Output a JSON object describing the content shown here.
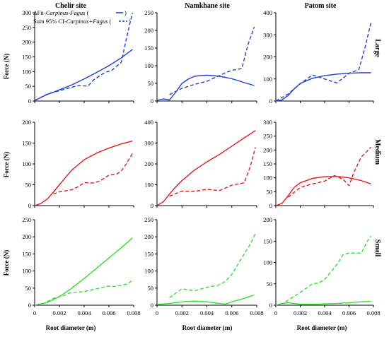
{
  "sites": [
    "Chelir site",
    "Namkhane site",
    "Patom site"
  ],
  "sizes": [
    "Large",
    "Medium",
    "Small"
  ],
  "y_axis_label": "Force (N)",
  "x_axis_label": "Root diameter (m)",
  "legend": {
    "fit": {
      "prefix": "ΔFit-",
      "italic": "Carpinus-Fagus",
      "suffix": " (",
      "close": ")"
    },
    "sum": {
      "prefix": "Sum 95% CI-",
      "italic": "Carpinus+Fagus",
      "suffix": " (",
      "close": ")"
    }
  },
  "colors": {
    "Large": "#1f3fd6",
    "Medium": "#e31a1c",
    "Small": "#2fe02f"
  },
  "chart_data": [
    {
      "type": "line",
      "site": "Chelir site",
      "size": "Large",
      "xlim": [
        0,
        0.008
      ],
      "ylim": [
        0,
        300
      ],
      "xticks": [],
      "yticks": [
        0,
        50,
        100,
        150,
        200,
        250,
        300
      ],
      "series": [
        {
          "name": "ΔFit-Carpinus-Fagus",
          "style": "solid",
          "x": [
            0,
            0.001,
            0.002,
            0.003,
            0.004,
            0.005,
            0.006,
            0.007,
            0.0079
          ],
          "y": [
            2,
            22,
            38,
            55,
            75,
            97,
            120,
            147,
            175
          ]
        },
        {
          "name": "Sum 95% CI-Carpinus+Fagus",
          "style": "dashed",
          "x": [
            0,
            0.001,
            0.002,
            0.003,
            0.0035,
            0.0043,
            0.0048,
            0.0057,
            0.0062,
            0.007,
            0.0074,
            0.0079
          ],
          "y": [
            2,
            23,
            35,
            47,
            52,
            51,
            73,
            98,
            103,
            132,
            210,
            300
          ]
        }
      ]
    },
    {
      "type": "line",
      "site": "Namkhane site",
      "size": "Large",
      "xlim": [
        0,
        0.008
      ],
      "ylim": [
        0,
        250
      ],
      "xticks": [],
      "yticks": [
        0,
        50,
        100,
        150,
        200,
        250
      ],
      "series": [
        {
          "name": "ΔFit-Carpinus-Fagus",
          "style": "solid",
          "x": [
            0,
            0.0005,
            0.001,
            0.0015,
            0.002,
            0.0025,
            0.003,
            0.0035,
            0.004,
            0.0045,
            0.005,
            0.0055,
            0.006,
            0.0065,
            0.007,
            0.0075,
            0.0078
          ],
          "y": [
            2,
            6,
            3,
            25,
            50,
            62,
            70,
            72,
            73,
            72,
            70,
            67,
            63,
            58,
            52,
            47,
            44
          ]
        },
        {
          "name": "Sum 95% CI-Carpinus+Fagus",
          "style": "dashed",
          "x": [
            0.001,
            0.002,
            0.003,
            0.004,
            0.005,
            0.0055,
            0.006,
            0.0068,
            0.0073,
            0.0078
          ],
          "y": [
            18,
            36,
            47,
            56,
            72,
            80,
            87,
            92,
            160,
            210
          ]
        }
      ]
    },
    {
      "type": "line",
      "site": "Patom site",
      "size": "Large",
      "xlim": [
        0,
        0.008
      ],
      "ylim": [
        0,
        400
      ],
      "xticks": [],
      "yticks": [
        0,
        100,
        200,
        300,
        400
      ],
      "series": [
        {
          "name": "ΔFit-Carpinus-Fagus",
          "style": "solid",
          "x": [
            0,
            0.0005,
            0.001,
            0.0015,
            0.002,
            0.003,
            0.004,
            0.005,
            0.006,
            0.007,
            0.0078
          ],
          "y": [
            0,
            5,
            25,
            55,
            80,
            103,
            115,
            122,
            126,
            128,
            128
          ]
        },
        {
          "name": "Sum 95% CI-Carpinus+Fagus",
          "style": "dashed",
          "x": [
            0,
            0.001,
            0.002,
            0.003,
            0.004,
            0.005,
            0.006,
            0.0068,
            0.0073,
            0.0078
          ],
          "y": [
            0,
            32,
            78,
            118,
            100,
            82,
            125,
            142,
            240,
            355
          ]
        }
      ]
    },
    {
      "type": "line",
      "site": "Chelir site",
      "size": "Medium",
      "xlim": [
        0,
        0.008
      ],
      "ylim": [
        0,
        200
      ],
      "xticks": [],
      "yticks": [
        0,
        50,
        100,
        150,
        200
      ],
      "series": [
        {
          "name": "ΔFit-Carpinus-Fagus",
          "style": "solid",
          "x": [
            0,
            0.0005,
            0.001,
            0.0015,
            0.002,
            0.0025,
            0.003,
            0.004,
            0.005,
            0.006,
            0.007,
            0.0079
          ],
          "y": [
            0,
            5,
            15,
            32,
            50,
            68,
            85,
            110,
            126,
            138,
            148,
            155
          ]
        },
        {
          "name": "Sum 95% CI-Carpinus+Fagus",
          "style": "dashed",
          "x": [
            0.0015,
            0.002,
            0.003,
            0.0035,
            0.004,
            0.0047,
            0.0052,
            0.006,
            0.0066,
            0.007,
            0.0074,
            0.0079
          ],
          "y": [
            28,
            33,
            38,
            45,
            55,
            54,
            58,
            73,
            75,
            83,
            100,
            125
          ]
        }
      ]
    },
    {
      "type": "line",
      "site": "Namkhane site",
      "size": "Medium",
      "xlim": [
        0,
        0.008
      ],
      "ylim": [
        0,
        400
      ],
      "xticks": [],
      "yticks": [
        0,
        100,
        200,
        300,
        400
      ],
      "series": [
        {
          "name": "ΔFit-Carpinus-Fagus",
          "style": "solid",
          "x": [
            0,
            0.0005,
            0.001,
            0.0015,
            0.002,
            0.003,
            0.004,
            0.005,
            0.006,
            0.007,
            0.0079
          ],
          "y": [
            0,
            18,
            55,
            90,
            120,
            170,
            210,
            245,
            285,
            325,
            360
          ]
        },
        {
          "name": "Sum 95% CI-Carpinus+Fagus",
          "style": "dashed",
          "x": [
            0.001,
            0.002,
            0.003,
            0.004,
            0.005,
            0.006,
            0.007,
            0.0075,
            0.0079
          ],
          "y": [
            45,
            70,
            68,
            78,
            72,
            98,
            110,
            190,
            280
          ]
        }
      ]
    },
    {
      "type": "line",
      "site": "Patom site",
      "size": "Medium",
      "xlim": [
        0,
        0.008
      ],
      "ylim": [
        0,
        300
      ],
      "xticks": [],
      "yticks": [
        0,
        50,
        100,
        150,
        200,
        250,
        300
      ],
      "series": [
        {
          "name": "ΔFit-Carpinus-Fagus",
          "style": "solid",
          "x": [
            0,
            0.0005,
            0.001,
            0.0015,
            0.002,
            0.003,
            0.004,
            0.005,
            0.006,
            0.007,
            0.0078
          ],
          "y": [
            0,
            8,
            35,
            65,
            82,
            98,
            104,
            105,
            100,
            90,
            78
          ]
        },
        {
          "name": "Sum 95% CI-Carpinus+Fagus",
          "style": "dashed",
          "x": [
            0.001,
            0.002,
            0.003,
            0.004,
            0.0048,
            0.0055,
            0.006,
            0.0064,
            0.007,
            0.0078
          ],
          "y": [
            30,
            65,
            78,
            88,
            108,
            95,
            72,
            120,
            175,
            210
          ]
        }
      ]
    },
    {
      "type": "line",
      "site": "Chelir site",
      "size": "Small",
      "xlim": [
        0,
        0.008
      ],
      "ylim": [
        0,
        250
      ],
      "xticks": [
        0,
        0.002,
        0.004,
        0.006,
        0.008
      ],
      "yticks": [
        0,
        50,
        100,
        150,
        200,
        250
      ],
      "series": [
        {
          "name": "ΔFit-Carpinus-Fagus",
          "style": "solid",
          "x": [
            0,
            0.001,
            0.002,
            0.003,
            0.004,
            0.005,
            0.006,
            0.007,
            0.0079
          ],
          "y": [
            0,
            8,
            25,
            50,
            78,
            108,
            138,
            168,
            197
          ]
        },
        {
          "name": "Sum 95% CI-Carpinus+Fagus",
          "style": "dashed",
          "x": [
            0.001,
            0.0015,
            0.002,
            0.0025,
            0.003,
            0.0035,
            0.004,
            0.005,
            0.0055,
            0.006,
            0.0065,
            0.007,
            0.0075,
            0.0079
          ],
          "y": [
            10,
            20,
            25,
            30,
            38,
            38,
            40,
            48,
            52,
            56,
            55,
            58,
            62,
            73
          ]
        }
      ]
    },
    {
      "type": "line",
      "site": "Namkhane site",
      "size": "Small",
      "xlim": [
        0,
        0.008
      ],
      "ylim": [
        0,
        250
      ],
      "xticks": [
        0,
        0.002,
        0.004,
        0.006,
        0.008
      ],
      "yticks": [
        0,
        50,
        100,
        150,
        200,
        250
      ],
      "series": [
        {
          "name": "ΔFit-Carpinus-Fagus",
          "style": "solid",
          "x": [
            0,
            0.001,
            0.002,
            0.003,
            0.004,
            0.005,
            0.0055,
            0.006,
            0.007,
            0.0078
          ],
          "y": [
            2,
            5,
            10,
            12,
            10,
            5,
            3,
            10,
            20,
            30
          ]
        },
        {
          "name": "Sum 95% CI-Carpinus+Fagus",
          "style": "dashed",
          "x": [
            0.001,
            0.002,
            0.003,
            0.004,
            0.005,
            0.0055,
            0.006,
            0.0065,
            0.007,
            0.0075,
            0.0079
          ],
          "y": [
            22,
            48,
            42,
            52,
            60,
            70,
            90,
            120,
            150,
            180,
            210
          ]
        }
      ]
    },
    {
      "type": "line",
      "site": "Patom site",
      "size": "Small",
      "xlim": [
        0,
        0.008
      ],
      "ylim": [
        0,
        200
      ],
      "xticks": [
        0,
        0.002,
        0.004,
        0.006,
        0.008
      ],
      "yticks": [
        0,
        50,
        100,
        150,
        200
      ],
      "series": [
        {
          "name": "ΔFit-Carpinus-Fagus",
          "style": "solid",
          "x": [
            0,
            0.0005,
            0.001,
            0.0015,
            0.002,
            0.003,
            0.004,
            0.005,
            0.006,
            0.007,
            0.0078
          ],
          "y": [
            0,
            4,
            6,
            4,
            2,
            2,
            3,
            4,
            6,
            8,
            9
          ]
        },
        {
          "name": "Sum 95% CI-Carpinus+Fagus",
          "style": "dashed",
          "x": [
            0.0008,
            0.002,
            0.003,
            0.0035,
            0.004,
            0.005,
            0.0055,
            0.006,
            0.007,
            0.0075,
            0.0078
          ],
          "y": [
            8,
            30,
            50,
            52,
            60,
            95,
            118,
            122,
            122,
            150,
            162
          ]
        }
      ]
    }
  ]
}
